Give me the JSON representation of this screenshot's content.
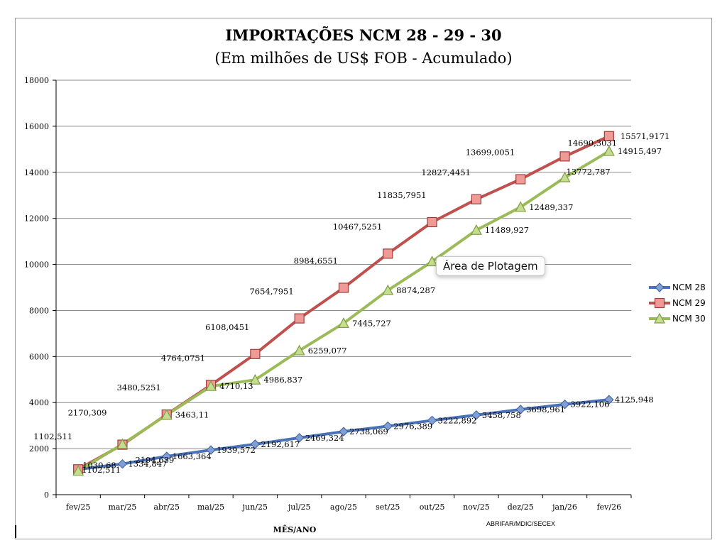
{
  "chart_data": {
    "type": "line",
    "title": "IMPORTAÇÕES NCM 28 - 29 - 30",
    "subtitle": "(Em milhões de US$ FOB - Acumulado)",
    "xlabel": "MÊS/ANO",
    "ylabel": "",
    "source": "ABRIFAR/MDIC/SECEX",
    "ylim": [
      0,
      18000
    ],
    "yticks": [
      "0",
      "2000",
      "4000",
      "6000",
      "8000",
      "10000",
      "12000",
      "14000",
      "16000",
      "18000"
    ],
    "grid": true,
    "legend_position": "right",
    "categories": [
      "fev/25",
      "mar/25",
      "abr/25",
      "mai/25",
      "jun/25",
      "jul/25",
      "ago/25",
      "set/25",
      "out/25",
      "nov/25",
      "dez/25",
      "jan/26",
      "fev/26"
    ],
    "series": [
      {
        "name": "NCM 28",
        "color": "#4a72b8",
        "marker": "diamond",
        "values": [
          1102.511,
          1334.847,
          1663.364,
          1939.572,
          2192.617,
          2469.324,
          2738.069,
          2976.389,
          3222.892,
          3458.758,
          3698.961,
          3922.106,
          4125.948
        ],
        "labels": [
          "1102,511",
          "1334,847",
          "1663,364",
          "1939,572",
          "2192,617",
          "2469,324",
          "2738,069",
          "2976,389",
          "3222,892",
          "3458,758",
          "3698,961",
          "3922,106",
          "4125,948"
        ]
      },
      {
        "name": "NCM 29",
        "color": "#c0504d",
        "marker": "square",
        "values": [
          1102.511,
          2170.309,
          3480.5251,
          4764.0751,
          6108.0451,
          7654.7951,
          8984.6551,
          10467.5251,
          11835.7951,
          12827.4451,
          13699.0051,
          14690.3031,
          15571.9171
        ],
        "labels": [
          "1102,511",
          "2170,309",
          "3480,5251",
          "4764,0751",
          "6108,0451",
          "7654,7951",
          "8984,6551",
          "10467,5251",
          "11835,7951",
          "12827,4451",
          "13699,0051",
          "14690,3031",
          "15571,9171"
        ]
      },
      {
        "name": "NCM 30",
        "color": "#9bbb59",
        "marker": "triangle",
        "values": [
          1030.68,
          2194.639,
          3463.11,
          4710.13,
          4986.837,
          6259.077,
          7445.727,
          8874.287,
          10124.0,
          11489.927,
          12489.337,
          13772.787,
          14915.497
        ],
        "labels": [
          "1030,68",
          "2194,639",
          "3463,11",
          "4710,13",
          "4986,837",
          "6259,077",
          "7445,727",
          "8874,287",
          "",
          "11489,927",
          "12489,337",
          "13772,787",
          "14915,497"
        ]
      }
    ]
  },
  "tooltip": "Área de Plotagem"
}
